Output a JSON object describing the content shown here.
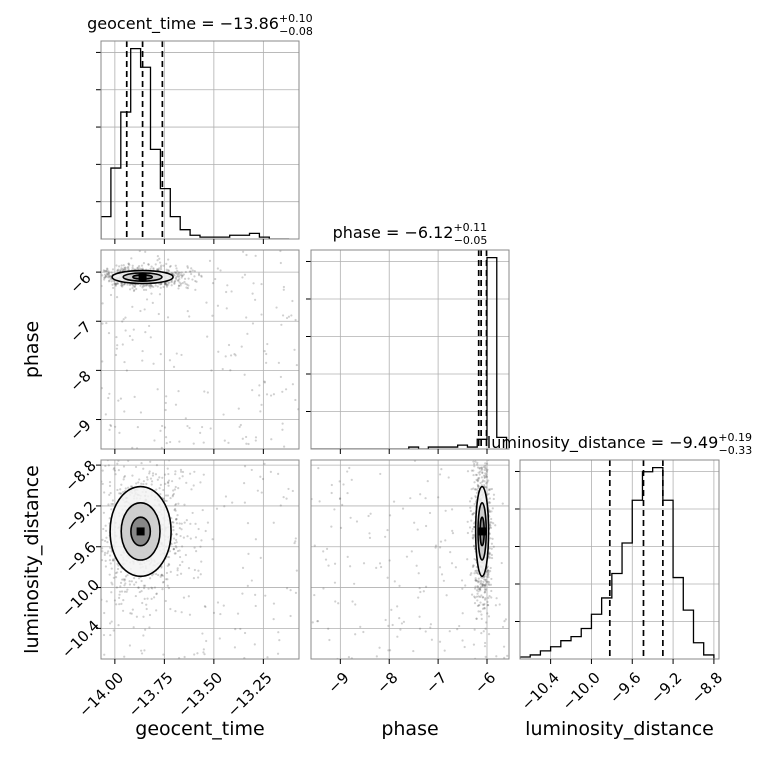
{
  "chart_data": {
    "type": "corner",
    "parameters": [
      "geocent_time",
      "phase",
      "luminosity_distance"
    ],
    "titles": [
      {
        "param": "geocent_time",
        "text": "geocent_time = −13.86",
        "plus": "+0.10",
        "minus": "−0.08",
        "median": -13.86,
        "lower": -13.94,
        "upper": -13.76
      },
      {
        "param": "phase",
        "text": "phase = −6.12",
        "plus": "+0.11",
        "minus": "−0.05",
        "median": -6.12,
        "lower": -6.17,
        "upper": -6.01
      },
      {
        "param": "luminosity_distance",
        "text": "luminosity_distance = −9.49",
        "plus": "+0.19",
        "minus": "−0.33",
        "median": -9.49,
        "lower": -9.82,
        "upper": -9.3
      }
    ],
    "axes": {
      "geocent_time": {
        "range": [
          -14.07,
          -13.07
        ],
        "ticks": [
          -14.0,
          -13.75,
          -13.5,
          -13.25
        ],
        "tick_labels": [
          "−14.00",
          "−13.75",
          "−13.50",
          "−13.25"
        ],
        "label": "geocent_time"
      },
      "phase": {
        "range": [
          -9.6,
          -5.55
        ],
        "ticks": [
          -9,
          -8,
          -7,
          -6
        ],
        "tick_labels": [
          "−9",
          "−8",
          "−7",
          "−6"
        ],
        "label": "phase"
      },
      "luminosity_distance": {
        "range": [
          -10.7,
          -8.75
        ],
        "ticks": [
          -10.4,
          -10.0,
          -9.6,
          -9.2,
          -8.8
        ],
        "tick_labels": [
          "−10.4",
          "−10.0",
          "−9.6",
          "−9.2",
          "−8.8"
        ],
        "label": "luminosity_distance"
      }
    },
    "histograms": {
      "geocent_time": {
        "bin_edges": [
          -14.07,
          -14.02,
          -13.97,
          -13.92,
          -13.87,
          -13.82,
          -13.77,
          -13.72,
          -13.67,
          -13.62,
          -13.57,
          -13.52,
          -13.47,
          -13.42,
          -13.37,
          -13.32,
          -13.27,
          -13.22,
          -13.17,
          -13.12
        ],
        "counts": [
          12,
          38,
          68,
          102,
          92,
          48,
          27,
          12,
          5,
          2,
          1,
          1,
          1,
          2,
          2,
          3,
          1,
          0,
          0
        ]
      },
      "phase": {
        "bin_edges": [
          -9.6,
          -9.4,
          -9.2,
          -9.0,
          -8.8,
          -8.6,
          -8.4,
          -8.2,
          -8.0,
          -7.8,
          -7.6,
          -7.4,
          -7.2,
          -7.0,
          -6.8,
          -6.6,
          -6.4,
          -6.2,
          -6.0,
          -5.8,
          -5.6
        ],
        "counts": [
          0,
          0,
          0,
          0,
          0,
          0,
          0,
          0,
          0,
          0,
          1,
          0,
          1,
          1,
          1,
          2,
          1,
          5,
          99,
          6
        ]
      },
      "luminosity_distance": {
        "bin_edges": [
          -10.7,
          -10.6,
          -10.5,
          -10.4,
          -10.3,
          -10.2,
          -10.1,
          -10.0,
          -9.9,
          -9.8,
          -9.7,
          -9.6,
          -9.5,
          -9.4,
          -9.3,
          -9.2,
          -9.1,
          -9.0,
          -8.9,
          -8.8
        ],
        "counts": [
          1,
          2,
          4,
          6,
          9,
          11,
          15,
          22,
          30,
          42,
          57,
          78,
          92,
          94,
          78,
          40,
          24,
          8,
          2
        ]
      }
    },
    "contours": [
      {
        "x": "geocent_time",
        "y": "phase",
        "center": [
          -13.86,
          -6.1
        ],
        "spread": [
          0.07,
          0.06
        ]
      },
      {
        "x": "geocent_time",
        "y": "luminosity_distance",
        "center": [
          -13.87,
          -9.45
        ],
        "spread": [
          0.07,
          0.2
        ]
      },
      {
        "x": "phase",
        "y": "luminosity_distance",
        "center": [
          -6.1,
          -9.45
        ],
        "spread": [
          0.06,
          0.2
        ]
      }
    ],
    "grid": true,
    "legend": "none",
    "colors": {
      "line": "#000000",
      "grid": "#b0b0b0",
      "samples": "#555555"
    }
  }
}
